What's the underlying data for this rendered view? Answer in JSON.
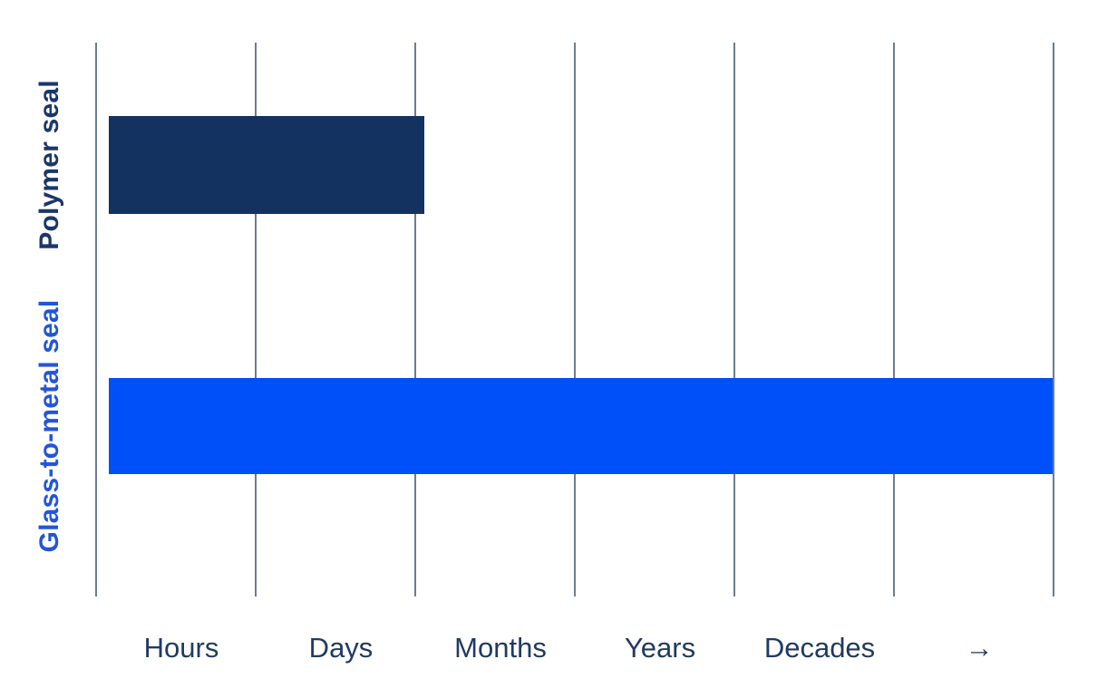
{
  "figure": {
    "background": "#ffffff"
  },
  "chart_data": {
    "type": "bar",
    "orientation": "horizontal",
    "title": "",
    "categories": [
      "Polymer seal",
      "Glass-to-metal seal"
    ],
    "x_tick_labels": [
      "Hours",
      "Days",
      "Months",
      "Years",
      "Decades",
      "→"
    ],
    "series": [
      {
        "name": "Polymer seal",
        "value_intervals": 2.06,
        "bar_color": "#133260",
        "label_color": "#1b3769"
      },
      {
        "name": "Glass-to-metal seal",
        "value_intervals": 6.0,
        "bar_color": "#0050fa",
        "label_color": "#2355d9"
      }
    ],
    "xlim_intervals": [
      0,
      6
    ],
    "grid": true,
    "gridline_count": 7,
    "gridline_color": "#6b7d92",
    "axis_label_color": "#203a62",
    "legend": "none"
  }
}
